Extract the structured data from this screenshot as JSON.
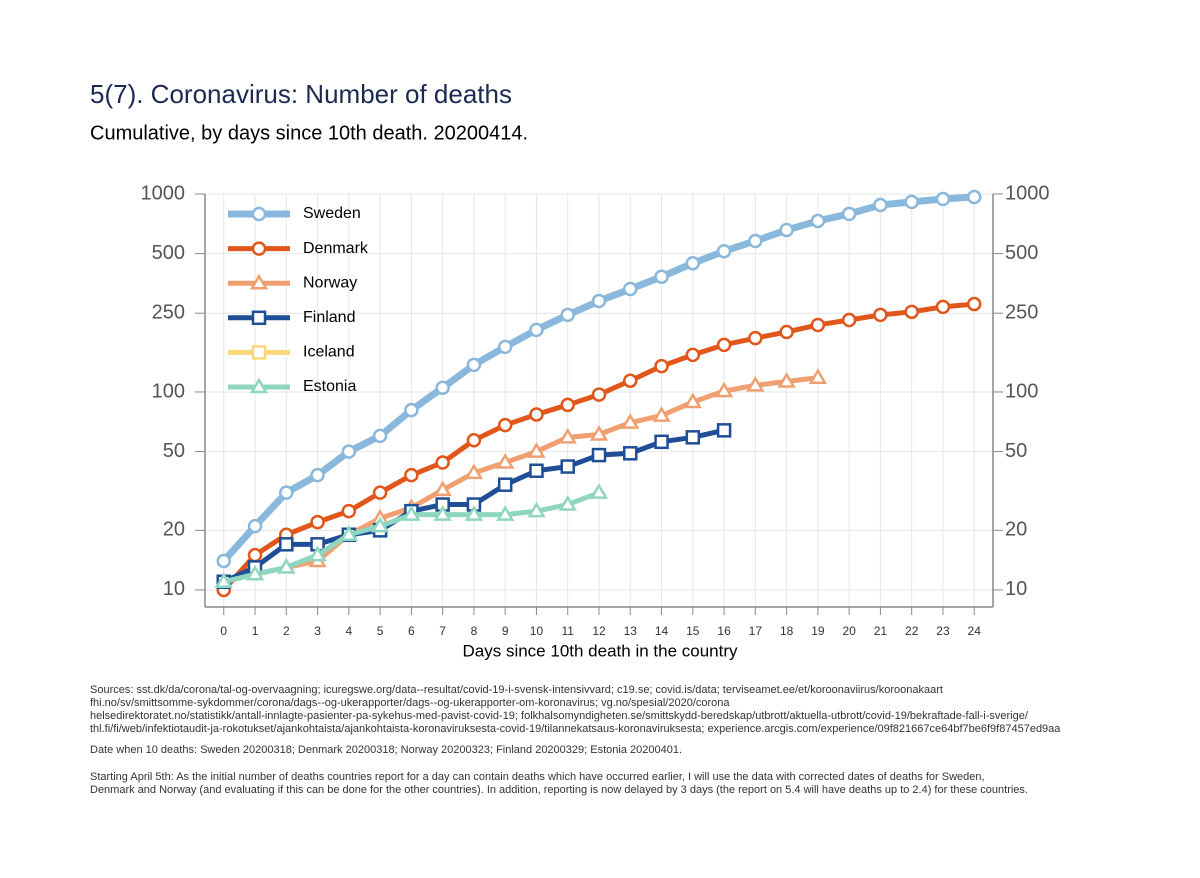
{
  "chart_data": {
    "type": "line",
    "title": "5(7). Coronavirus: Number of deaths",
    "subtitle": "Cumulative, by days since 10th death. 20200414.",
    "x_label": "Days since 10th death in the country",
    "x": [
      0,
      1,
      2,
      3,
      4,
      5,
      6,
      7,
      8,
      9,
      10,
      11,
      12,
      13,
      14,
      15,
      16,
      17,
      18,
      19,
      20,
      21,
      22,
      23,
      24
    ],
    "xlim": [
      -0.6,
      24.6
    ],
    "xticks": [
      0,
      1,
      2,
      3,
      4,
      5,
      6,
      7,
      8,
      9,
      10,
      11,
      12,
      13,
      14,
      15,
      16,
      17,
      18,
      19,
      20,
      21,
      22,
      23,
      24
    ],
    "ylim": [
      8.2,
      1000
    ],
    "yticks": [
      10,
      20,
      50,
      100,
      250,
      500,
      1000
    ],
    "log_y": true,
    "mirror_y_axis": true,
    "grid": true,
    "legend_position": "upper-left",
    "series": [
      {
        "name": "Sweden",
        "color": "#8ab8dc",
        "marker": "circle",
        "values": [
          14,
          21,
          31,
          38,
          50,
          60,
          81,
          105,
          137,
          169,
          206,
          245,
          288,
          331,
          382,
          447,
          514,
          579,
          658,
          731,
          794,
          880,
          912,
          944,
          966
        ]
      },
      {
        "name": "Denmark",
        "color": "#e1561a",
        "marker": "circle",
        "values": [
          10,
          15,
          19,
          22,
          25,
          31,
          38,
          44,
          57,
          68,
          77,
          86,
          97,
          114,
          135,
          154,
          173,
          187,
          201,
          218,
          231,
          245,
          254,
          269,
          278
        ]
      },
      {
        "name": "Norway",
        "color": "#f0a070",
        "marker": "triangle",
        "values": [
          11,
          12,
          13,
          14,
          19,
          23,
          26,
          32,
          39,
          44,
          50,
          59,
          61,
          70,
          76,
          89,
          101,
          108,
          113,
          118,
          null,
          null,
          null,
          null,
          null
        ]
      },
      {
        "name": "Finland",
        "color": "#1f4e96",
        "marker": "square",
        "values": [
          11,
          13,
          17,
          17,
          19,
          20,
          25,
          27,
          27,
          34,
          40,
          42,
          48,
          49,
          56,
          59,
          64,
          null,
          null,
          null,
          null,
          null,
          null,
          null,
          null
        ]
      },
      {
        "name": "Iceland",
        "color": "#fbd97a",
        "marker": "square",
        "values": [
          null,
          null,
          null,
          null,
          null,
          null,
          null,
          null,
          null,
          null,
          null,
          null,
          null,
          null,
          null,
          null,
          null,
          null,
          null,
          null,
          null,
          null,
          null,
          null,
          null
        ]
      },
      {
        "name": "Estonia",
        "color": "#8ed6c0",
        "marker": "triangle",
        "values": [
          11,
          12,
          13,
          15,
          19,
          21,
          24,
          24,
          24,
          24,
          25,
          27,
          31,
          null,
          null,
          null,
          null,
          null,
          null,
          null,
          null,
          null,
          null,
          null,
          null
        ]
      }
    ],
    "notes": [
      "Sources: sst.dk/da/corona/tal-og-overvaagning; icuregswe.org/data--resultat/covid-19-i-svensk-intensivvard; c19.se; covid.is/data;  terviseamet.ee/et/koroonaviirus/koroonakaart",
      "fhi.no/sv/smittsomme-sykdommer/corona/dags--og-ukerapporter/dags--og-ukerapporter-om-koronavirus; vg.no/spesial/2020/corona",
      "helsedirektoratet.no/statistikk/antall-innlagte-pasienter-pa-sykehus-med-pavist-covid-19; folkhalsomyndigheten.se/smittskydd-beredskap/utbrott/aktuella-utbrott/covid-19/bekraftade-fall-i-sverige/",
      "thl.fi/fi/web/infektiotaudit-ja-rokotukset/ajankohtaista/ajankohtaista-koronaviruksesta-covid-19/tilannekatsaus-koronaviruksesta; experience.arcgis.com/experience/09f821667ce64bf7be6f9f87457ed9aa",
      "Date when 10 deaths: Sweden 20200318; Denmark 20200318; Norway 20200323; Finland 20200329; Estonia 20200401.",
      "Starting April 5th: As the initial number of deaths countries report for a day can contain deaths which have occurred earlier, I will use the data with corrected dates of deaths for Sweden,",
      "Denmark and Norway (and evaluating if this can be done for the other countries). In addition, reporting is now delayed by 3 days (the report on 5.4 will have deaths up to 2.4) for these countries."
    ]
  }
}
